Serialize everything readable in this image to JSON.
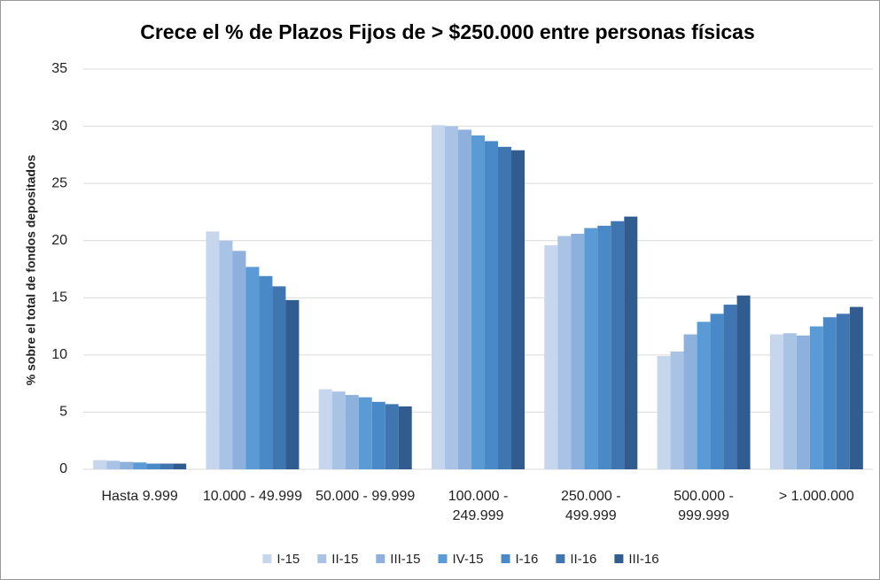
{
  "chart_data": {
    "type": "bar",
    "title": "Crece el % de Plazos Fijos de > $250.000 entre personas físicas",
    "y_label": "% sobre el total de fondos depositados",
    "categories": [
      "Hasta 9.999",
      "10.000 - 49.999",
      "50.000 - 99.999",
      "100.000 - 249.999",
      "250.000 - 499.999",
      "500.000 - 999.999",
      "> 1.000.000"
    ],
    "series": [
      {
        "name": "I-15",
        "color": "#c6d6ec",
        "values": [
          0.8,
          20.8,
          7.0,
          30.1,
          19.6,
          9.9,
          11.8
        ]
      },
      {
        "name": "II-15",
        "color": "#a9c3e5",
        "values": [
          0.75,
          20.0,
          6.8,
          30.0,
          20.4,
          10.3,
          11.9
        ]
      },
      {
        "name": "III-15",
        "color": "#8eb0dd",
        "values": [
          0.65,
          19.1,
          6.5,
          29.7,
          20.6,
          11.8,
          11.7
        ]
      },
      {
        "name": "IV-15",
        "color": "#5b9bd5",
        "values": [
          0.6,
          17.7,
          6.3,
          29.2,
          21.1,
          12.9,
          12.5
        ]
      },
      {
        "name": "I-16",
        "color": "#4a89c8",
        "values": [
          0.5,
          16.9,
          5.9,
          28.7,
          21.3,
          13.6,
          13.3
        ]
      },
      {
        "name": "II-16",
        "color": "#3f75b0",
        "values": [
          0.5,
          16.0,
          5.7,
          28.2,
          21.7,
          14.4,
          13.6
        ]
      },
      {
        "name": "III-16",
        "color": "#305c90",
        "values": [
          0.5,
          14.8,
          5.5,
          27.9,
          22.1,
          15.2,
          14.2
        ]
      }
    ],
    "ylim": [
      0,
      35
    ],
    "yticks": [
      0,
      5,
      10,
      15,
      20,
      25,
      30,
      35
    ],
    "grid": true,
    "legend": "bottom"
  }
}
